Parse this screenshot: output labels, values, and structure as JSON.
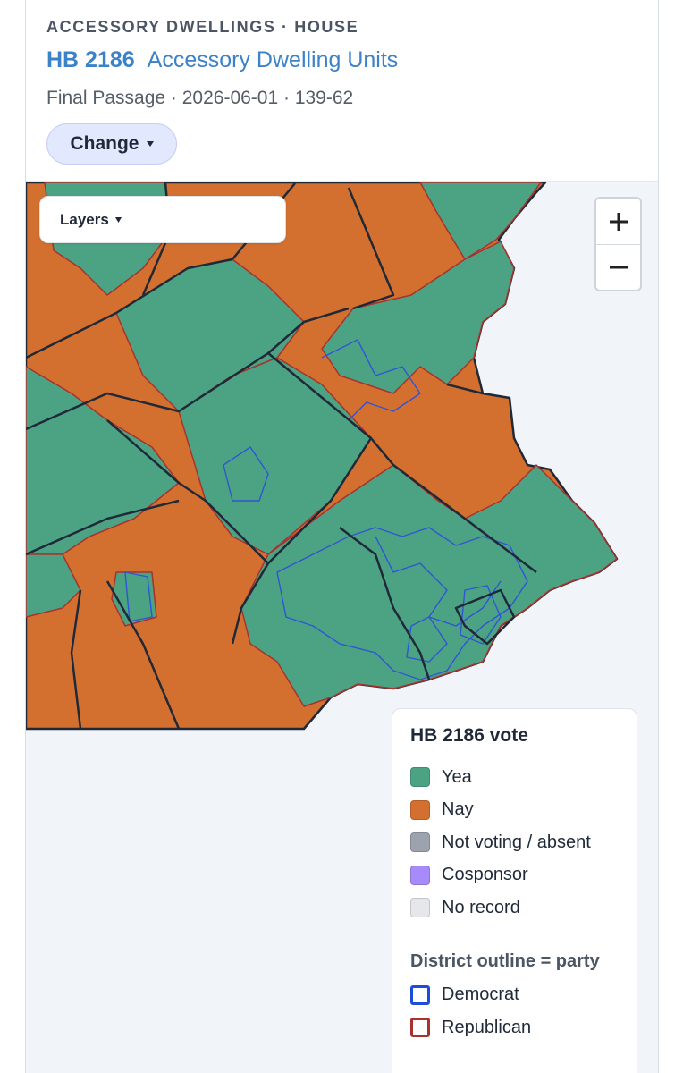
{
  "header": {
    "kicker": "ACCESSORY DWELLINGS · HOUSE",
    "bill": "HB 2186",
    "title": "Accessory Dwelling Units",
    "meta": "Final Passage · 2026-06-01 · 139-62",
    "button": "Change"
  },
  "map": {
    "layers_button": "Layers"
  },
  "legend": {
    "title": "HB 2186 vote",
    "items": [
      {
        "label": "Yea",
        "color": "#4ca384"
      },
      {
        "label": "Nay",
        "color": "#d4702f"
      },
      {
        "label": "Not voting / absent",
        "color": "#9ca3af"
      },
      {
        "label": "Cosponsor",
        "color": "#a78bfa"
      },
      {
        "label": "No record",
        "color": "#e5e7eb"
      }
    ],
    "outline_title": "District outline = party",
    "outline_items": [
      {
        "label": "Democrat",
        "color": "#1d4ed8"
      },
      {
        "label": "Republican",
        "color": "#a8322d"
      }
    ]
  }
}
